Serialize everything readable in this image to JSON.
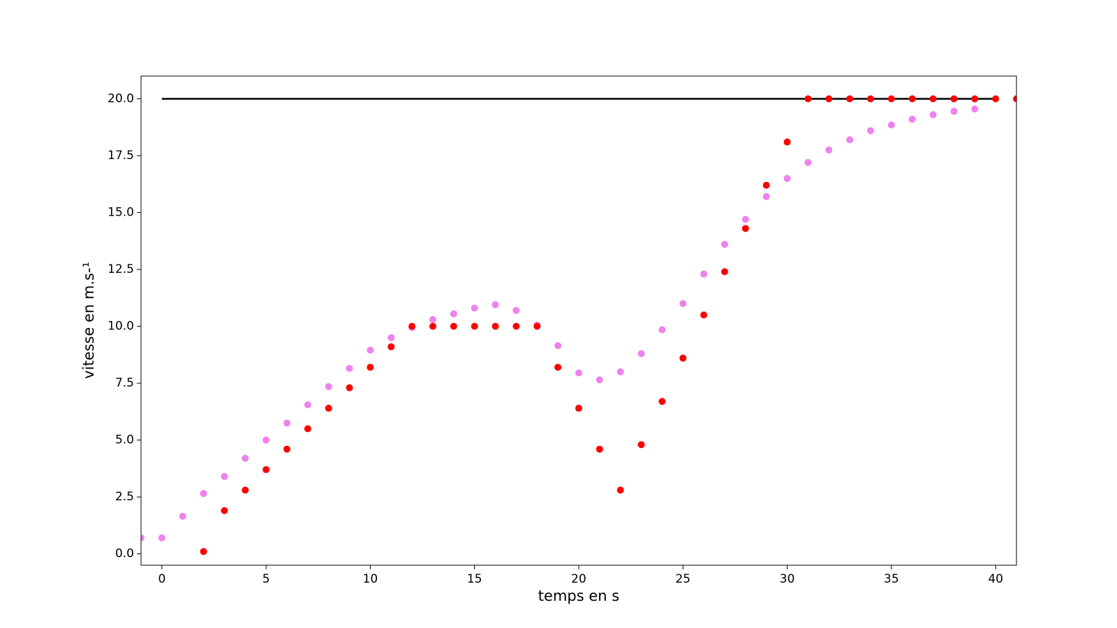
{
  "chart_data": {
    "type": "scatter",
    "xlabel": "temps en s",
    "ylabel": "vitesse en m.s-¹",
    "xlim": [
      -1,
      41
    ],
    "ylim": [
      -0.5,
      21
    ],
    "xticks": [
      0,
      5,
      10,
      15,
      20,
      25,
      30,
      35,
      40
    ],
    "yticks": [
      {
        "value": 0,
        "label": "0.0"
      },
      2.5,
      {
        "value": 5,
        "label": "5.0"
      },
      7.5,
      {
        "value": 10,
        "label": "10.0"
      },
      12.5,
      {
        "value": 15,
        "label": "15.0"
      },
      17.5,
      {
        "value": 20,
        "label": "20.0"
      }
    ],
    "grid": false,
    "series": [
      {
        "style": "line",
        "color": "#000000",
        "x": [
          0,
          40
        ],
        "values": [
          20,
          20
        ]
      },
      {
        "style": "points",
        "color": "#ee82ee",
        "x": [
          -1,
          0,
          1,
          2,
          3,
          4,
          5,
          6,
          7,
          8,
          9,
          10,
          11,
          12,
          13,
          14,
          15,
          16,
          17,
          18,
          19,
          20,
          21,
          22,
          23,
          24,
          25,
          26,
          27,
          28,
          29,
          30,
          31,
          32,
          33,
          34,
          35,
          36,
          37,
          38,
          39
        ],
        "values": [
          0.7,
          0.7,
          1.65,
          2.65,
          3.4,
          4.2,
          5.0,
          5.75,
          6.55,
          7.35,
          8.15,
          8.95,
          9.5,
          9.95,
          10.3,
          10.55,
          10.8,
          10.95,
          10.7,
          10.05,
          9.15,
          7.95,
          7.65,
          8.0,
          8.8,
          9.85,
          11.0,
          12.3,
          13.6,
          14.7,
          15.7,
          16.5,
          17.2,
          17.75,
          18.2,
          18.6,
          18.85,
          19.1,
          19.3,
          19.45,
          19.55
        ]
      },
      {
        "style": "points",
        "color": "#ff0000",
        "x": [
          2,
          3,
          4,
          5,
          6,
          7,
          8,
          9,
          10,
          11,
          12,
          13,
          14,
          15,
          16,
          17,
          18,
          19,
          20,
          21,
          22,
          23,
          24,
          25,
          26,
          27,
          28,
          29,
          30,
          31,
          32,
          33,
          34,
          35,
          36,
          37,
          38,
          39,
          40,
          41
        ],
        "values": [
          0.1,
          1.9,
          2.8,
          3.7,
          4.6,
          5.5,
          6.4,
          7.3,
          8.2,
          9.1,
          10,
          10,
          10,
          10,
          10,
          10,
          10,
          8.2,
          6.4,
          4.6,
          2.8,
          4.8,
          6.7,
          8.6,
          10.5,
          12.4,
          14.3,
          16.2,
          18.1,
          20,
          20,
          20,
          20,
          20,
          20,
          20,
          20,
          20,
          20,
          20
        ]
      }
    ]
  }
}
